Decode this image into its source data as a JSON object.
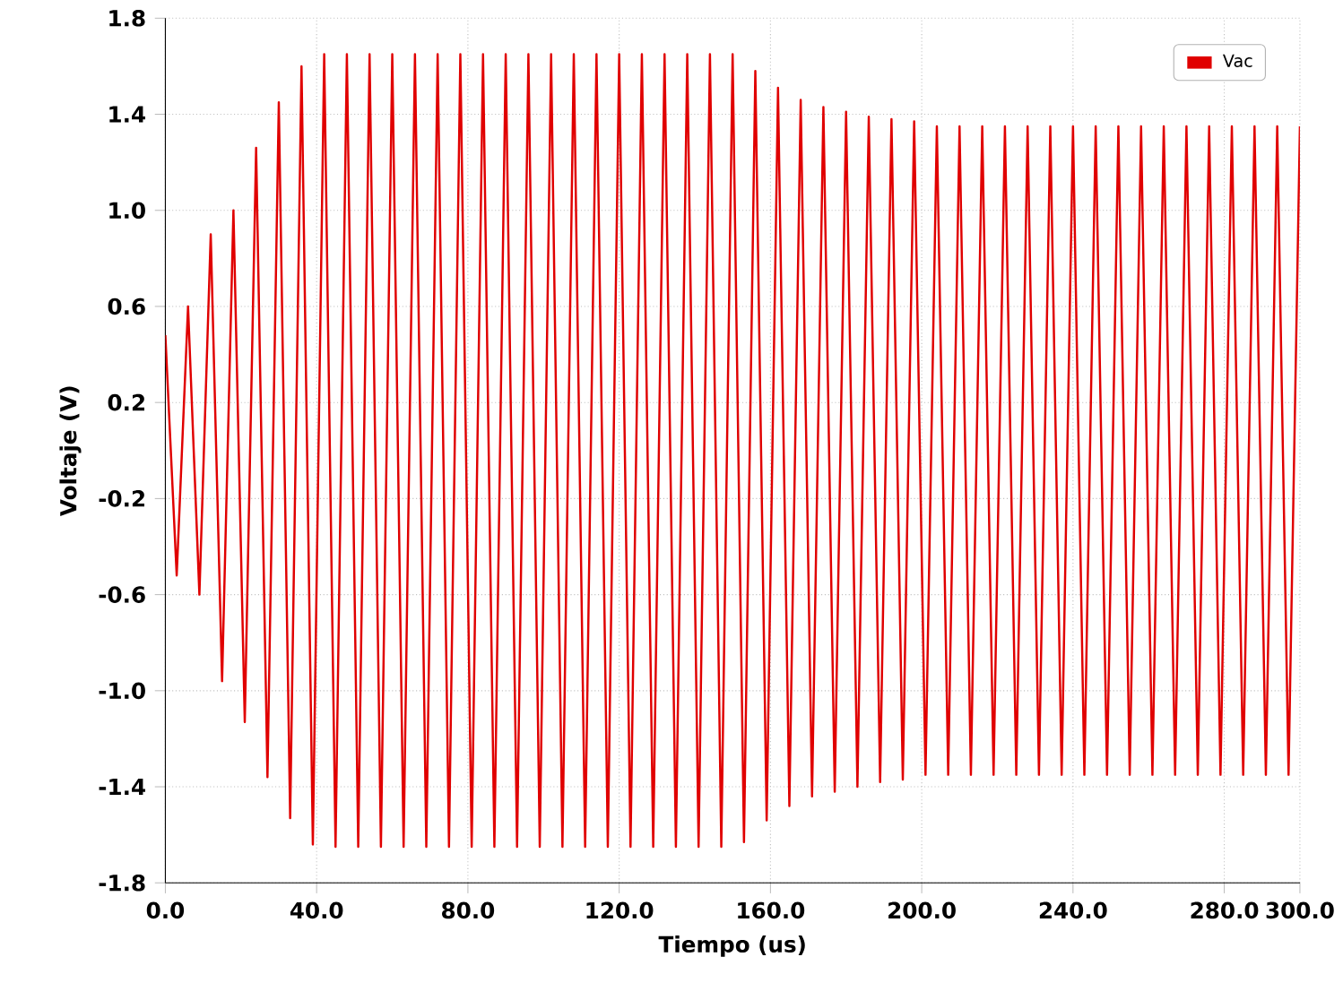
{
  "chart_data": {
    "type": "line",
    "xlabel": "Tiempo (us)",
    "ylabel": "Voltaje (V)",
    "xlim": [
      0,
      300
    ],
    "ylim": [
      -1.8,
      1.8
    ],
    "xticks": [
      {
        "value": 0,
        "label": "0.0"
      },
      {
        "value": 40,
        "label": "40.0"
      },
      {
        "value": 80,
        "label": "80.0"
      },
      {
        "value": 120,
        "label": "120.0"
      },
      {
        "value": 160,
        "label": "160.0"
      },
      {
        "value": 200,
        "label": "200.0"
      },
      {
        "value": 240,
        "label": "240.0"
      },
      {
        "value": 280,
        "label": "280.0"
      },
      {
        "value": 300,
        "label": "300.0"
      }
    ],
    "yticks": [
      -1.8,
      -1.4,
      {
        "value": -1,
        "label": "-1.0"
      },
      -0.6,
      -0.2,
      0.2,
      0.6,
      {
        "value": 1,
        "label": "1.0"
      },
      1.4,
      1.8
    ],
    "grid": true,
    "legend": "top right",
    "marker": "none",
    "line_style": "solid",
    "x": [
      0,
      3,
      6,
      9,
      12,
      15,
      18,
      21,
      24,
      27,
      30,
      33,
      36,
      39,
      42,
      45,
      48,
      51,
      54,
      57,
      60,
      63,
      66,
      69,
      72,
      75,
      78,
      81,
      84,
      87,
      90,
      93,
      96,
      99,
      102,
      105,
      108,
      111,
      114,
      117,
      120,
      123,
      126,
      129,
      132,
      135,
      138,
      141,
      144,
      147,
      150,
      153,
      156,
      159,
      162,
      165,
      168,
      171,
      174,
      177,
      180,
      183,
      186,
      189,
      192,
      195,
      198,
      201,
      204,
      207,
      210,
      213,
      216,
      219,
      222,
      225,
      228,
      231,
      234,
      237,
      240,
      243,
      246,
      249,
      252,
      255,
      258,
      261,
      264,
      267,
      270,
      273,
      276,
      279,
      282,
      285,
      288,
      291,
      294,
      297,
      300
    ],
    "series": [
      {
        "name": "Vac",
        "color": "#e00000",
        "values": [
          0.48,
          -0.52,
          0.6,
          -0.6,
          0.9,
          -0.96,
          1.0,
          -1.13,
          1.26,
          -1.36,
          1.45,
          -1.53,
          1.6,
          -1.64,
          1.65,
          -1.65,
          1.65,
          -1.65,
          1.65,
          -1.65,
          1.65,
          -1.65,
          1.65,
          -1.65,
          1.65,
          -1.65,
          1.65,
          -1.65,
          1.65,
          -1.65,
          1.65,
          -1.65,
          1.65,
          -1.65,
          1.65,
          -1.65,
          1.65,
          -1.65,
          1.65,
          -1.65,
          1.65,
          -1.65,
          1.65,
          -1.65,
          1.65,
          -1.65,
          1.65,
          -1.65,
          1.65,
          -1.65,
          1.65,
          -1.63,
          1.58,
          -1.54,
          1.51,
          -1.48,
          1.46,
          -1.44,
          1.43,
          -1.42,
          1.41,
          -1.4,
          1.39,
          -1.38,
          1.38,
          -1.37,
          1.37,
          -1.35,
          1.35,
          -1.35,
          1.35,
          -1.35,
          1.35,
          -1.35,
          1.35,
          -1.35,
          1.35,
          -1.35,
          1.35,
          -1.35,
          1.35,
          -1.35,
          1.35,
          -1.35,
          1.35,
          -1.35,
          1.35,
          -1.35,
          1.35,
          -1.35,
          1.35,
          -1.35,
          1.35,
          -1.35,
          1.35,
          -1.35,
          1.35,
          -1.35,
          1.35,
          -1.35,
          1.35
        ]
      }
    ]
  }
}
